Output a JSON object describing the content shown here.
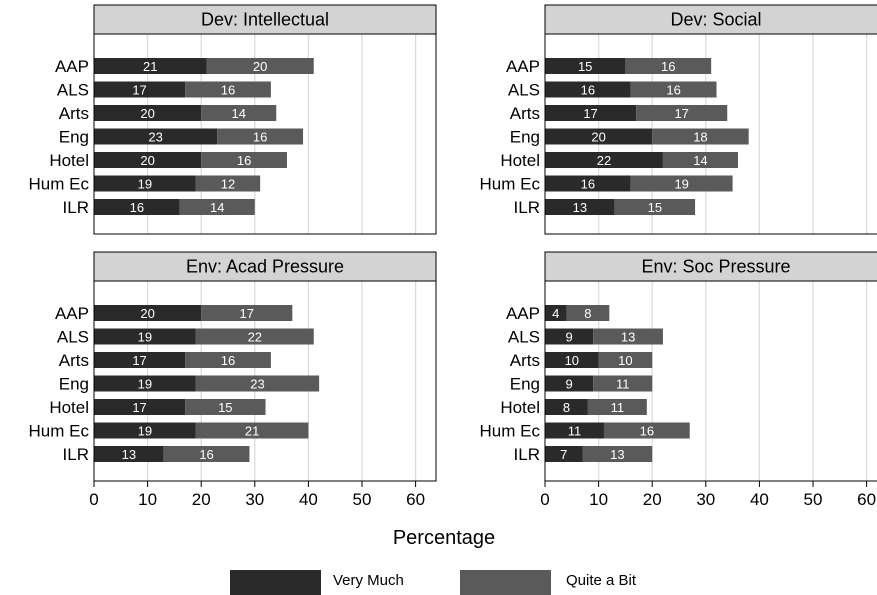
{
  "chart_data": {
    "type": "bar",
    "orientation": "horizontal",
    "stacked": true,
    "categories": [
      "AAP",
      "ALS",
      "Arts",
      "Eng",
      "Hotel",
      "Hum Ec",
      "ILR"
    ],
    "xlabel": "Percentage",
    "xlim": [
      0,
      64
    ],
    "xticks": [
      0,
      10,
      20,
      30,
      40,
      50,
      60
    ],
    "grid": true,
    "legend_position": "bottom",
    "colors": {
      "very_much": "#2a2a2a",
      "quite_a_bit": "#5a5a5a",
      "strip": "#d3d3d3",
      "grid": "#dcdcdc"
    },
    "legend": [
      "Very Much",
      "Quite a Bit"
    ],
    "panels": [
      {
        "title": "Dev: Intellectual",
        "series": [
          {
            "name": "Very Much",
            "values": [
              21,
              17,
              20,
              23,
              20,
              19,
              16
            ]
          },
          {
            "name": "Quite a Bit",
            "values": [
              20,
              16,
              14,
              16,
              16,
              12,
              14
            ]
          }
        ]
      },
      {
        "title": "Dev: Social",
        "series": [
          {
            "name": "Very Much",
            "values": [
              15,
              16,
              17,
              20,
              22,
              16,
              13
            ]
          },
          {
            "name": "Quite a Bit",
            "values": [
              16,
              16,
              17,
              18,
              14,
              19,
              15
            ]
          }
        ]
      },
      {
        "title": "Env: Acad Pressure",
        "series": [
          {
            "name": "Very Much",
            "values": [
              20,
              19,
              17,
              19,
              17,
              19,
              13
            ]
          },
          {
            "name": "Quite a Bit",
            "values": [
              17,
              22,
              16,
              23,
              15,
              21,
              16
            ]
          }
        ]
      },
      {
        "title": "Env: Soc Pressure",
        "series": [
          {
            "name": "Very Much",
            "values": [
              4,
              9,
              10,
              9,
              8,
              11,
              7
            ]
          },
          {
            "name": "Quite a Bit",
            "values": [
              8,
              13,
              10,
              11,
              11,
              16,
              13
            ]
          }
        ]
      }
    ]
  }
}
